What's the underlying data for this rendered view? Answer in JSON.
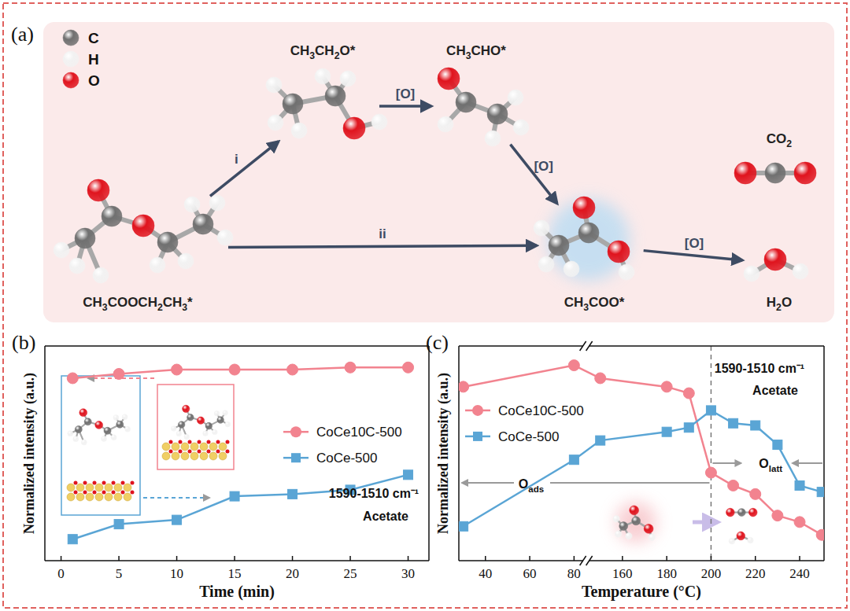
{
  "diagram": {
    "label": "(a)",
    "legend": [
      {
        "symbol": "C",
        "color": "#707070"
      },
      {
        "symbol": "H",
        "color": "#f2f2f2"
      },
      {
        "symbol": "O",
        "color": "#e0141e"
      }
    ],
    "nodes": [
      {
        "label": "CH3COOCH2CH3*"
      },
      {
        "label": "CH3CH2O*"
      },
      {
        "label": "CH3CHO*"
      },
      {
        "label": "CH3COO*"
      },
      {
        "label": "CO2"
      },
      {
        "label": "H2O"
      }
    ],
    "edges": [
      {
        "from": 0,
        "to": 1,
        "label": "i"
      },
      {
        "from": 1,
        "to": 2,
        "label": "[O]"
      },
      {
        "from": 2,
        "to": 3,
        "label": "[O]"
      },
      {
        "from": 0,
        "to": 3,
        "label": "ii"
      },
      {
        "from": 3,
        "to": 5,
        "label": "[O]"
      }
    ]
  },
  "chart_data": [
    {
      "type": "line",
      "title": "(b)",
      "x_label": "Time (min)",
      "y_label": "Normalized intensity (a.u.)",
      "annotations": [
        "1590-1510 cm⁻¹",
        "Acetate"
      ],
      "x": [
        1,
        5,
        10,
        15,
        20,
        25,
        30
      ],
      "xlim": [
        -1.4,
        31.8
      ],
      "xticks": [
        0,
        5,
        10,
        15,
        20,
        25,
        30
      ],
      "ylim": [
        0,
        1
      ],
      "tick_labels": "x",
      "legend": "center right",
      "series": [
        {
          "name": "CoCe10C-500",
          "color": "#f2838f",
          "marker": "circle",
          "values": [
            0.85,
            0.87,
            0.89,
            0.89,
            0.89,
            0.9,
            0.9
          ]
        },
        {
          "name": "CoCe-500",
          "color": "#5aa5d5",
          "marker": "square",
          "values": [
            0.1,
            0.17,
            0.19,
            0.3,
            0.31,
            0.33,
            0.4
          ]
        }
      ]
    },
    {
      "type": "line",
      "title": "(c)",
      "x_label": "Temperature (°C)",
      "y_label": "Normalized intensity (a.u.)",
      "annotations": [
        "1590-1510 cm⁻¹",
        "Acetate",
        "Oads",
        "Olatt"
      ],
      "x": [
        30,
        80,
        150,
        180,
        190,
        200,
        210,
        220,
        230,
        240,
        250
      ],
      "xlim": [
        28,
        251
      ],
      "xbreak": [
        84,
        145
      ],
      "xticks": [
        40,
        60,
        80,
        160,
        180,
        200,
        220,
        240
      ],
      "vline": 200,
      "ylim": [
        0,
        1
      ],
      "tick_labels": "x",
      "legend": "upper left",
      "series": [
        {
          "name": "CoCe10C-500",
          "color": "#f2838f",
          "marker": "circle",
          "values": [
            0.81,
            0.91,
            0.85,
            0.81,
            0.78,
            0.41,
            0.35,
            0.31,
            0.21,
            0.18,
            0.12
          ]
        },
        {
          "name": "CoCe-500",
          "color": "#5aa5d5",
          "marker": "square",
          "values": [
            0.16,
            0.47,
            0.56,
            0.6,
            0.62,
            0.7,
            0.64,
            0.63,
            0.54,
            0.35,
            0.32
          ]
        }
      ]
    }
  ]
}
